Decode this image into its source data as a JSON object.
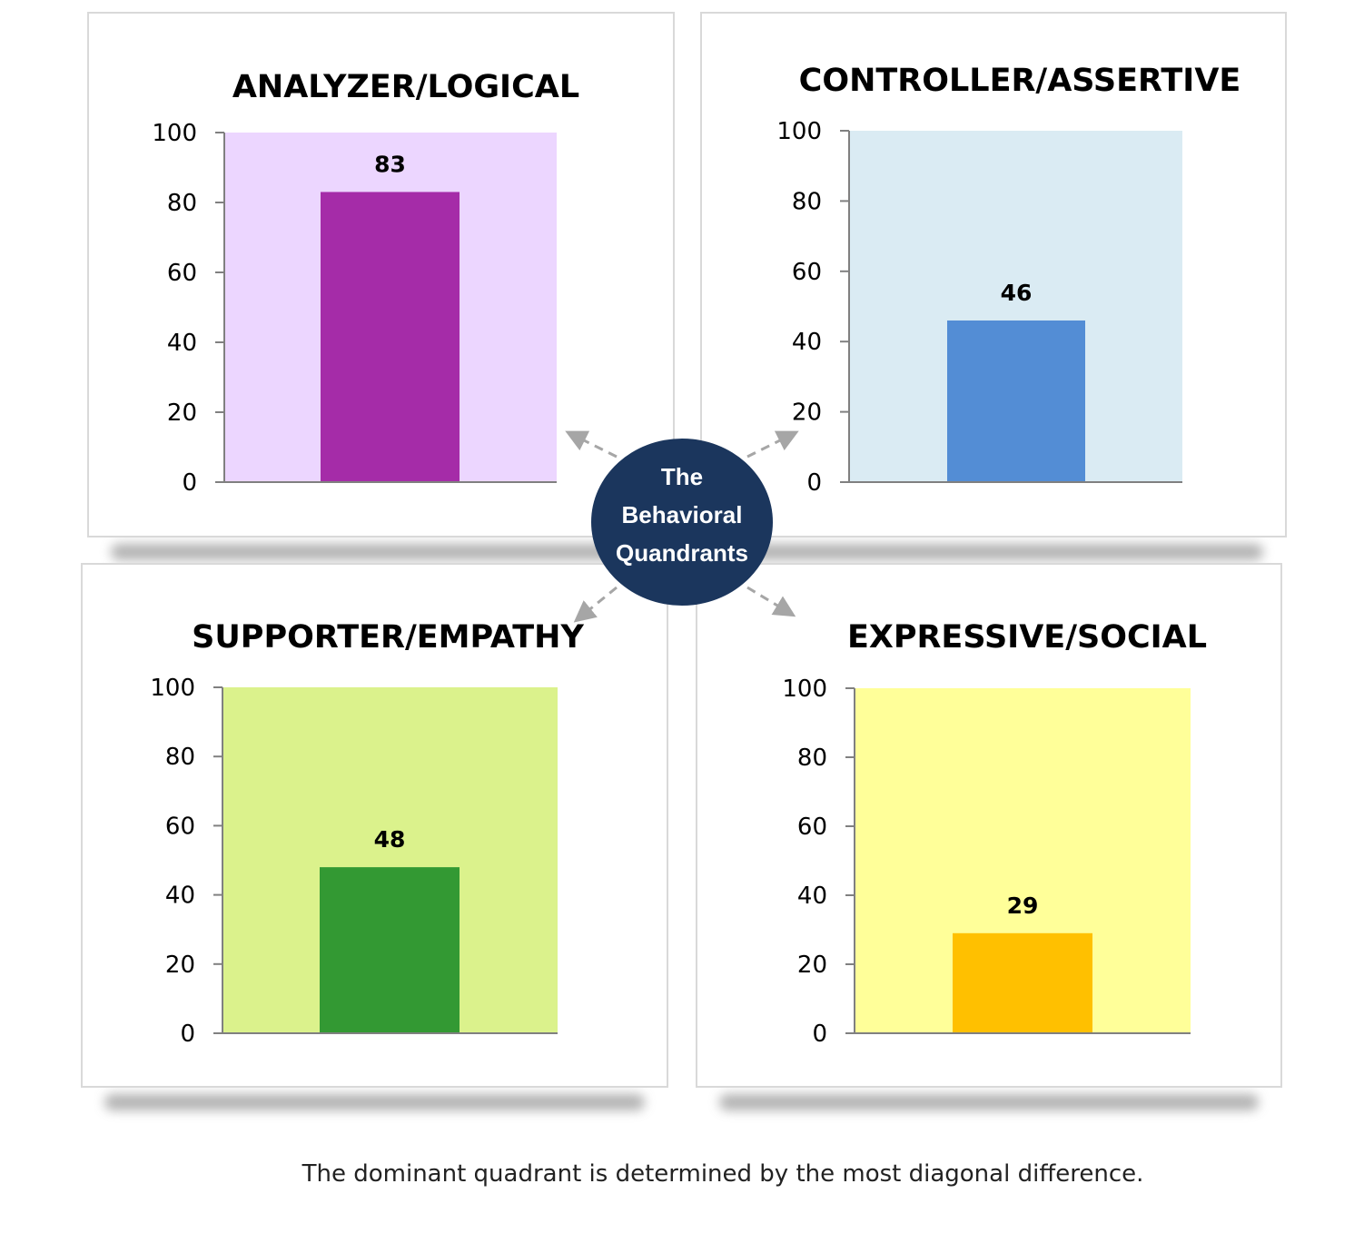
{
  "center_label": [
    "The",
    "Behavioral",
    "Quandrants"
  ],
  "caption": "The dominant quadrant is determined by the most diagonal difference.",
  "colors": {
    "center_circle": "#1b365d",
    "arrows": "#a6a6a6"
  },
  "chart_data": [
    {
      "type": "bar",
      "title": "ANALYZER/LOGICAL",
      "values": [
        83
      ],
      "ylim": [
        0,
        100
      ],
      "yticks": [
        0,
        20,
        40,
        60,
        80,
        100
      ],
      "bar_color": "#a52ca8",
      "plot_background": "#ecd6ff",
      "grid": false
    },
    {
      "type": "bar",
      "title": "CONTROLLER/ASSERTIVE",
      "values": [
        46
      ],
      "ylim": [
        0,
        100
      ],
      "yticks": [
        0,
        20,
        40,
        60,
        80,
        100
      ],
      "bar_color": "#538dd5",
      "plot_background": "#daebf3",
      "grid": false
    },
    {
      "type": "bar",
      "title": "SUPPORTER/EMPATHY",
      "values": [
        48
      ],
      "ylim": [
        0,
        100
      ],
      "yticks": [
        0,
        20,
        40,
        60,
        80,
        100
      ],
      "bar_color": "#339933",
      "plot_background": "#dbf28c",
      "grid": false
    },
    {
      "type": "bar",
      "title": "EXPRESSIVE/SOCIAL",
      "values": [
        29
      ],
      "ylim": [
        0,
        100
      ],
      "yticks": [
        0,
        20,
        40,
        60,
        80,
        100
      ],
      "bar_color": "#ffc000",
      "plot_background": "#ffff99",
      "grid": false
    }
  ]
}
